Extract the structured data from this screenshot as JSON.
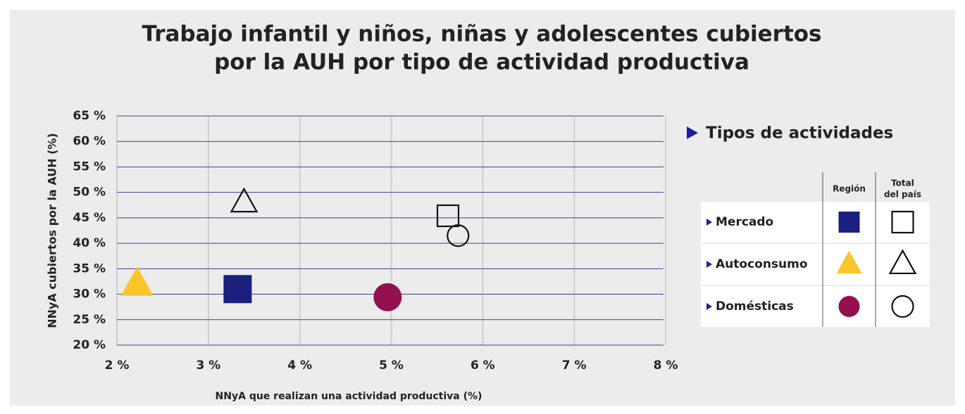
{
  "chart_data": {
    "type": "scatter",
    "title": [
      "Trabajo infantil y niños, niñas y adolescentes cubiertos",
      "por la AUH por tipo de actividad productiva"
    ],
    "x_label": "NNyA que realizan una actividad productiva (%)",
    "y_label": "NNyA cubiertos por la AUH (%)",
    "xlim": [
      2,
      8
    ],
    "xticks": [
      {
        "value": 2,
        "label": "2 %"
      },
      {
        "value": 3,
        "label": "3 %"
      },
      {
        "value": 4,
        "label": "4 %"
      },
      {
        "value": 5,
        "label": "5 %"
      },
      {
        "value": 6,
        "label": "6 %"
      },
      {
        "value": 7,
        "label": "7 %"
      },
      {
        "value": 8,
        "label": "8 %"
      }
    ],
    "ylim": [
      20,
      65
    ],
    "yticks": [
      {
        "value": 20,
        "label": "20 %"
      },
      {
        "value": 25,
        "label": "25 %"
      },
      {
        "value": 30,
        "label": "30 %"
      },
      {
        "value": 35,
        "label": "35 %"
      },
      {
        "value": 40,
        "label": "40 %"
      },
      {
        "value": 45,
        "label": "45 %"
      },
      {
        "value": 50,
        "label": "50 %"
      },
      {
        "value": 55,
        "label": "55 %"
      },
      {
        "value": 60,
        "label": "60 %"
      },
      {
        "value": 65,
        "label": "65 %"
      }
    ],
    "grid": true,
    "legend": {
      "title": "Tipos de actividades",
      "columns": [
        [
          "Región"
        ],
        [
          "Total",
          "del país"
        ]
      ]
    },
    "series": [
      {
        "name": "Mercado",
        "marker": "square",
        "color": "#1b1f7e",
        "region": {
          "x": 3.32,
          "y": 31
        },
        "total": {
          "x": 5.62,
          "y": 45.4
        }
      },
      {
        "name": "Autoconsumo",
        "marker": "triangle",
        "color": "#fcc52b",
        "region": {
          "x": 2.22,
          "y": 32
        },
        "total": {
          "x": 3.39,
          "y": 48
        }
      },
      {
        "name": "Domésticas",
        "marker": "circle",
        "color": "#93104f",
        "region": {
          "x": 4.96,
          "y": 29.4
        },
        "total": {
          "x": 5.73,
          "y": 41.5
        }
      }
    ]
  }
}
